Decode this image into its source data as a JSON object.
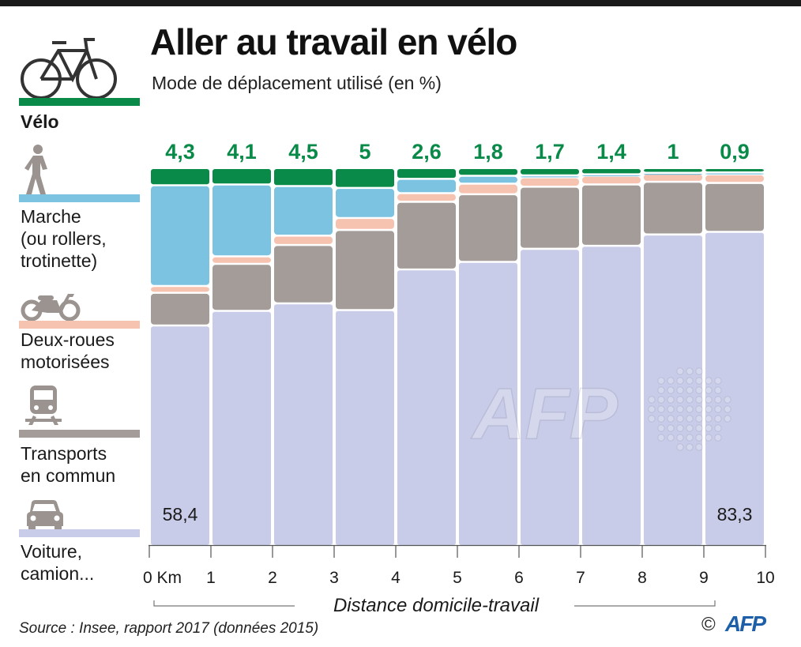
{
  "title": "Aller au travail en vélo",
  "subtitle": "Mode de déplacement utilisé (en %)",
  "source": "Source : Insee, rapport 2017 (données 2015)",
  "credit": {
    "copyright": "©",
    "logo": "AFP"
  },
  "watermark": "AFP",
  "legend": [
    {
      "key": "velo",
      "label": "Vélo",
      "icon": "bicycle-icon",
      "color": "#0a8a48",
      "bold": true
    },
    {
      "key": "marche",
      "label": "Marche\n(ou rollers,\ntrotinette)",
      "icon": "pedestrian-icon",
      "color": "#7cc3e2",
      "bold": false
    },
    {
      "key": "deux_roues",
      "label": "Deux-roues\nmotorisées",
      "icon": "scooter-icon",
      "color": "#f7c3b1",
      "bold": false
    },
    {
      "key": "transports",
      "label": "Transports\nen commun",
      "icon": "train-icon",
      "color": "#a39c98",
      "bold": false
    },
    {
      "key": "voiture",
      "label": "Voiture,\ncamion...",
      "icon": "car-icon",
      "color": "#c9cce9",
      "bold": false
    }
  ],
  "chart_data": {
    "type": "bar",
    "stacked": true,
    "title": "Aller au travail en vélo",
    "subtitle": "Mode de déplacement utilisé (en %)",
    "xlabel": "Distance domicile-travail",
    "ylabel": "",
    "ylim": [
      0,
      100
    ],
    "x_ticks": [
      "0 Km",
      "1",
      "2",
      "3",
      "4",
      "5",
      "6",
      "7",
      "8",
      "9",
      "10"
    ],
    "categories": [
      "0-1",
      "1-2",
      "2-3",
      "3-4",
      "4-5",
      "5-6",
      "6-7",
      "7-8",
      "8-9",
      "9-10"
    ],
    "top_labels": [
      "4,3",
      "4,1",
      "4,5",
      "5",
      "2,6",
      "1,8",
      "1,7",
      "1,4",
      "1",
      "0,9"
    ],
    "annotations": [
      {
        "category": "0-1",
        "text": "58,4"
      },
      {
        "category": "9-10",
        "text": "83,3"
      }
    ],
    "series": [
      {
        "name": "Voiture, camion...",
        "color": "#c9cce9",
        "values": [
          58.4,
          62.3,
          64.3,
          62.5,
          73.3,
          75.3,
          78.8,
          79.6,
          82.6,
          83.3
        ]
      },
      {
        "name": "Transports en commun",
        "color": "#a39c98",
        "values": [
          8.7,
          12.5,
          15.5,
          21.3,
          18.0,
          18.0,
          16.5,
          16.3,
          14.0,
          13.0
        ]
      },
      {
        "name": "Deux-roues motorisées",
        "color": "#f7c3b1",
        "values": [
          1.8,
          2.0,
          2.5,
          3.2,
          2.3,
          2.8,
          2.5,
          2.3,
          2.3,
          2.3
        ]
      },
      {
        "name": "Marche (ou rollers, trotinette)",
        "color": "#7cc3e2",
        "values": [
          26.8,
          19.1,
          13.2,
          8.0,
          3.8,
          2.1,
          0.5,
          0.4,
          0.1,
          0.5
        ]
      },
      {
        "name": "Vélo",
        "color": "#0a8a48",
        "values": [
          4.3,
          4.1,
          4.5,
          5,
          2.6,
          1.8,
          1.7,
          1.4,
          1,
          0.9
        ]
      }
    ]
  }
}
